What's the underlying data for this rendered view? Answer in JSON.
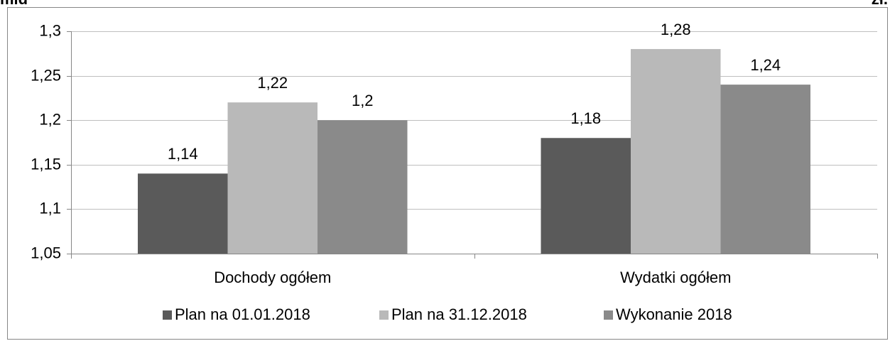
{
  "chart_data": {
    "type": "bar",
    "annotations": [
      "mld",
      "zł."
    ],
    "categories": [
      "Dochody ogółem",
      "Wydatki ogółem"
    ],
    "series": [
      {
        "name": "Plan na 01.01.2018",
        "color": "#5a5a5a",
        "values": [
          1.14,
          1.18
        ],
        "value_labels": [
          "1,14",
          "1,18"
        ]
      },
      {
        "name": "Plan na 31.12.2018",
        "color": "#b9b9b9",
        "values": [
          1.22,
          1.28
        ],
        "value_labels": [
          "1,22",
          "1,28"
        ]
      },
      {
        "name": "Wykonanie 2018",
        "color": "#8a8a8a",
        "values": [
          1.2,
          1.24
        ],
        "value_labels": [
          "1,2",
          "1,24"
        ]
      }
    ],
    "ylim": [
      1.05,
      1.3
    ],
    "yticks": [
      {
        "value": 1.05,
        "label": "1,05"
      },
      {
        "value": 1.1,
        "label": "1,1"
      },
      {
        "value": 1.15,
        "label": "1,15"
      },
      {
        "value": 1.2,
        "label": "1,2"
      },
      {
        "value": 1.25,
        "label": "1,25"
      },
      {
        "value": 1.3,
        "label": "1,3"
      }
    ],
    "grid": true,
    "legend": "bottom"
  }
}
